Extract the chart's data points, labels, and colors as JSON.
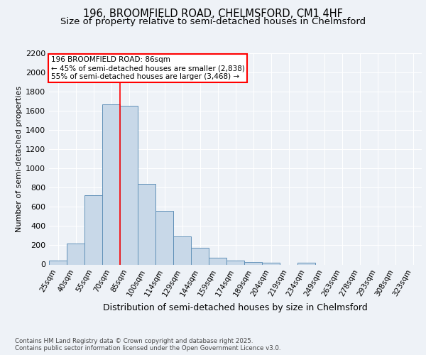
{
  "title1": "196, BROOMFIELD ROAD, CHELMSFORD, CM1 4HF",
  "title2": "Size of property relative to semi-detached houses in Chelmsford",
  "xlabel": "Distribution of semi-detached houses by size in Chelmsford",
  "ylabel": "Number of semi-detached properties",
  "footnote1": "Contains HM Land Registry data © Crown copyright and database right 2025.",
  "footnote2": "Contains public sector information licensed under the Open Government Licence v3.0.",
  "bar_labels": [
    "25sqm",
    "40sqm",
    "55sqm",
    "70sqm",
    "85sqm",
    "100sqm",
    "114sqm",
    "129sqm",
    "144sqm",
    "159sqm",
    "174sqm",
    "189sqm",
    "204sqm",
    "219sqm",
    "234sqm",
    "249sqm",
    "263sqm",
    "278sqm",
    "293sqm",
    "308sqm",
    "323sqm"
  ],
  "bar_values": [
    40,
    220,
    720,
    1670,
    1650,
    840,
    560,
    290,
    175,
    70,
    40,
    25,
    20,
    0,
    15,
    0,
    0,
    0,
    0,
    0,
    0
  ],
  "bar_color": "#c8d8e8",
  "bar_edge_color": "#6090b8",
  "annotation_line1": "196 BROOMFIELD ROAD: 86sqm",
  "annotation_line2": "← 45% of semi-detached houses are smaller (2,838)",
  "annotation_line3": "55% of semi-detached houses are larger (3,468) →",
  "property_line_color": "#ff0000",
  "ylim": [
    0,
    2200
  ],
  "yticks": [
    0,
    200,
    400,
    600,
    800,
    1000,
    1200,
    1400,
    1600,
    1800,
    2000,
    2200
  ],
  "background_color": "#eef2f7",
  "grid_color": "#ffffff",
  "title_fontsize": 10.5,
  "subtitle_fontsize": 9.5
}
